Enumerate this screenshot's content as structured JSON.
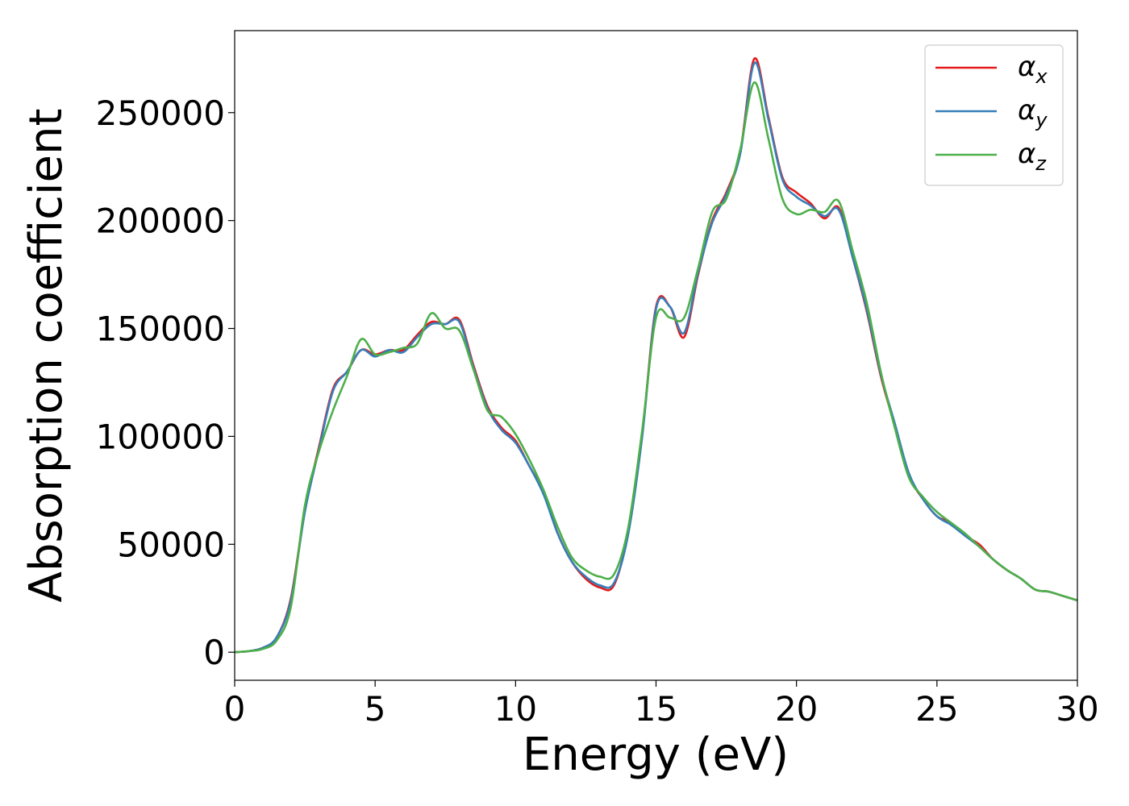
{
  "chart_data": {
    "type": "line",
    "title": "",
    "xlabel": "Energy (eV)",
    "ylabel": "Absorption coefficient",
    "xlim": [
      0,
      30
    ],
    "ylim": [
      -13000,
      288000
    ],
    "xticks": [
      0,
      5,
      10,
      15,
      20,
      25,
      30
    ],
    "yticks": [
      0,
      50000,
      100000,
      150000,
      200000,
      250000
    ],
    "grid": false,
    "legend_position": "top-right",
    "series": [
      {
        "name": "α",
        "subscript": "x",
        "color": "#e41a1c",
        "x": [
          0,
          0.5,
          1,
          1.5,
          2,
          2.5,
          3,
          3.5,
          4,
          4.5,
          5,
          5.5,
          6,
          6.5,
          7,
          7.5,
          8,
          8.5,
          9,
          9.5,
          10,
          10.5,
          11,
          11.5,
          12,
          12.5,
          13,
          13.5,
          14,
          14.5,
          15,
          15.5,
          16,
          16.5,
          17,
          17.5,
          18,
          18.5,
          19,
          19.5,
          20,
          20.5,
          21,
          21.5,
          22,
          22.5,
          23,
          23.5,
          24,
          24.5,
          25,
          25.5,
          26,
          26.5,
          27,
          27.5,
          28,
          28.5,
          29,
          29.5,
          30
        ],
        "values": [
          0,
          500,
          2000,
          7000,
          25000,
          66000,
          95000,
          122000,
          130000,
          140000,
          138000,
          140000,
          140000,
          147000,
          153000,
          152000,
          154000,
          133000,
          114000,
          104000,
          98000,
          86000,
          74000,
          55000,
          42000,
          34000,
          30000,
          31000,
          55000,
          100000,
          160000,
          160000,
          146000,
          175000,
          200000,
          213000,
          232000,
          275000,
          248000,
          220000,
          213000,
          208000,
          201000,
          206000,
          183000,
          158000,
          128000,
          105000,
          82000,
          71000,
          63000,
          60000,
          54000,
          50000,
          43000,
          38000,
          34000,
          29000,
          28000,
          26000,
          24000
        ]
      },
      {
        "name": "α",
        "subscript": "y",
        "color": "#377eb8",
        "x": [
          0,
          0.5,
          1,
          1.5,
          2,
          2.5,
          3,
          3.5,
          4,
          4.5,
          5,
          5.5,
          6,
          6.5,
          7,
          7.5,
          8,
          8.5,
          9,
          9.5,
          10,
          10.5,
          11,
          11.5,
          12,
          12.5,
          13,
          13.5,
          14,
          14.5,
          15,
          15.5,
          16,
          16.5,
          17,
          17.5,
          18,
          18.5,
          19,
          19.5,
          20,
          20.5,
          21,
          21.5,
          22,
          22.5,
          23,
          23.5,
          24,
          24.5,
          25,
          25.5,
          26,
          26.5,
          27,
          27.5,
          28,
          28.5,
          29,
          29.5,
          30
        ],
        "values": [
          0,
          500,
          2000,
          7000,
          24000,
          65000,
          94000,
          121000,
          130000,
          140000,
          137000,
          140000,
          139000,
          146000,
          152000,
          152000,
          153000,
          132000,
          113000,
          103000,
          97000,
          86000,
          73000,
          55000,
          42000,
          35000,
          31000,
          32000,
          54000,
          99000,
          159000,
          160000,
          148000,
          176000,
          199000,
          212000,
          231000,
          273000,
          247000,
          219000,
          211000,
          207000,
          202000,
          205000,
          183000,
          159000,
          129000,
          106000,
          83000,
          71000,
          63000,
          59000,
          54000,
          49000,
          43000,
          38000,
          34000,
          29000,
          28000,
          26000,
          24000
        ]
      },
      {
        "name": "α",
        "subscript": "z",
        "color": "#4daf4a",
        "x": [
          0,
          0.5,
          1,
          1.5,
          2,
          2.5,
          3,
          3.5,
          4,
          4.5,
          5,
          5.5,
          6,
          6.5,
          7,
          7.5,
          8,
          8.5,
          9,
          9.5,
          10,
          10.5,
          11,
          11.5,
          12,
          12.5,
          13,
          13.5,
          14,
          14.5,
          15,
          15.5,
          16,
          16.5,
          17,
          17.5,
          18,
          18.5,
          19,
          19.5,
          20,
          20.5,
          21,
          21.5,
          22,
          22.5,
          23,
          23.5,
          24,
          24.5,
          25,
          25.5,
          26,
          26.5,
          27,
          27.5,
          28,
          28.5,
          29,
          29.5,
          30
        ],
        "values": [
          0,
          500,
          1500,
          5500,
          21000,
          68000,
          93000,
          112000,
          128000,
          145000,
          138000,
          139000,
          141000,
          143000,
          157000,
          150000,
          149000,
          131000,
          112000,
          109000,
          101000,
          89000,
          75000,
          58000,
          44000,
          38000,
          35000,
          36000,
          57000,
          102000,
          155000,
          155000,
          155000,
          178000,
          204000,
          210000,
          233000,
          264000,
          238000,
          210000,
          203000,
          205000,
          204000,
          209000,
          186000,
          162000,
          130000,
          104000,
          81000,
          72000,
          65000,
          60000,
          55000,
          49000,
          43000,
          38000,
          34000,
          29000,
          28000,
          26000,
          24000
        ]
      }
    ]
  }
}
